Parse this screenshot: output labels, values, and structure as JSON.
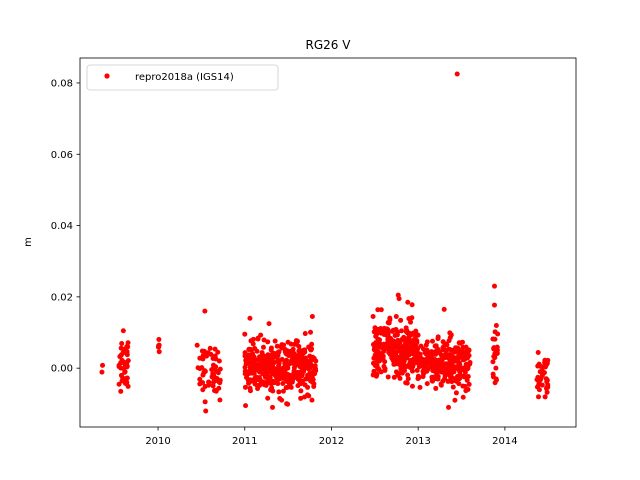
{
  "chart_data": {
    "type": "scatter",
    "title": "RG26 V",
    "xlabel": "",
    "ylabel": "m",
    "xlim": [
      2009.1,
      2014.82
    ],
    "ylim": [
      -0.0165,
      0.087
    ],
    "x_ticks": [
      2010,
      2011,
      2012,
      2013,
      2014
    ],
    "x_tick_labels": [
      "2010",
      "2011",
      "2012",
      "2013",
      "2014"
    ],
    "y_ticks": [
      0.0,
      0.02,
      0.04,
      0.06,
      0.08
    ],
    "y_tick_labels": [
      "0.00",
      "0.02",
      "0.04",
      "0.06",
      "0.08"
    ],
    "grid": false,
    "legend_position": "top-left",
    "marker_color": "#ff0000",
    "series": [
      {
        "name": "repro2018a (IGS14)",
        "clusters": [
          {
            "x_range": [
              2009.34,
              2009.36
            ],
            "y_mean": 0.002,
            "y_sd": 0.003,
            "n": 2
          },
          {
            "x_range": [
              2009.55,
              2009.66
            ],
            "y_mean": 0.002,
            "y_sd": 0.004,
            "n": 40
          },
          {
            "x_range": [
              2010.0,
              2010.02
            ],
            "y_mean": 0.007,
            "y_sd": 0.0013,
            "n": 6
          },
          {
            "x_range": [
              2010.45,
              2010.72
            ],
            "y_mean": -0.001,
            "y_sd": 0.0035,
            "n": 60
          },
          {
            "x_range": [
              2011.0,
              2011.82
            ],
            "y_mean": 0.0,
            "y_sd": 0.0035,
            "n": 420
          },
          {
            "x_range": [
              2012.48,
              2013.0
            ],
            "y_mean": 0.005,
            "y_sd": 0.0038,
            "n": 280
          },
          {
            "x_range": [
              2013.0,
              2013.6
            ],
            "y_mean": 0.001,
            "y_sd": 0.0035,
            "n": 260
          },
          {
            "x_range": [
              2013.86,
              2013.92
            ],
            "y_mean": 0.004,
            "y_sd": 0.005,
            "n": 24
          },
          {
            "x_range": [
              2014.37,
              2014.5
            ],
            "y_mean": -0.002,
            "y_sd": 0.003,
            "n": 40
          }
        ],
        "points": [
          [
            2013.45,
            0.0825
          ],
          [
            2013.88,
            0.023
          ],
          [
            2013.88,
            0.0177
          ],
          [
            2012.77,
            0.0205
          ],
          [
            2012.78,
            0.0195
          ],
          [
            2012.88,
            0.0185
          ],
          [
            2012.93,
            0.0178
          ],
          [
            2010.54,
            0.016
          ],
          [
            2010.55,
            -0.012
          ],
          [
            2011.06,
            0.014
          ],
          [
            2011.28,
            0.0125
          ],
          [
            2011.78,
            0.0145
          ],
          [
            2011.32,
            -0.011
          ],
          [
            2013.3,
            0.0165
          ],
          [
            2013.35,
            -0.011
          ],
          [
            2012.48,
            0.0145
          ],
          [
            2009.6,
            0.0105
          ],
          [
            2009.57,
            -0.0065
          ]
        ]
      }
    ]
  }
}
